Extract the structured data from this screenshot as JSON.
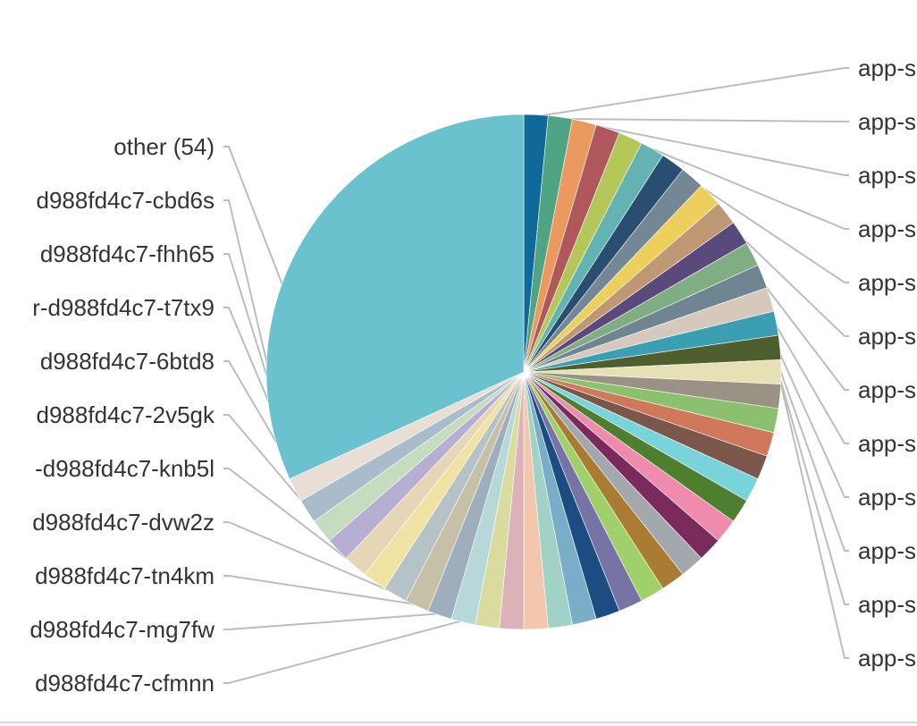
{
  "chart_data": {
    "type": "pie",
    "title": "",
    "left_labels": [
      "other (54)",
      "d988fd4c7-cbd6s",
      "d988fd4c7-fhh65",
      "r-d988fd4c7-t7tx9",
      "d988fd4c7-6btd8",
      "d988fd4c7-2v5gk",
      "-d988fd4c7-knb5l",
      "d988fd4c7-dvw2z",
      "d988fd4c7-tn4km",
      "d988fd4c7-mg7fw",
      "d988fd4c7-cfmnn"
    ],
    "right_labels": [
      "app-s",
      "app-s",
      "app-s",
      "app-s",
      "app-s",
      "app-s",
      "app-s",
      "app-s",
      "app-s",
      "app-s",
      "app-s",
      "app-s"
    ],
    "slices": [
      {
        "value": 2.0,
        "color": "#106A99"
      },
      {
        "value": 2.0,
        "color": "#4FA484"
      },
      {
        "value": 2.0,
        "color": "#EC9960"
      },
      {
        "value": 2.0,
        "color": "#AF575A"
      },
      {
        "value": 2.0,
        "color": "#B6C75A"
      },
      {
        "value": 2.0,
        "color": "#62B3B2"
      },
      {
        "value": 2.0,
        "color": "#294E70"
      },
      {
        "value": 2.0,
        "color": "#738795"
      },
      {
        "value": 2.0,
        "color": "#EDD05B"
      },
      {
        "value": 2.0,
        "color": "#BD9872"
      },
      {
        "value": 2.0,
        "color": "#5A4A7B"
      },
      {
        "value": 2.0,
        "color": "#7EAE81"
      },
      {
        "value": 2.0,
        "color": "#6F8591"
      },
      {
        "value": 2.0,
        "color": "#D6C8BB"
      },
      {
        "value": 2.0,
        "color": "#3A9FB2"
      },
      {
        "value": 2.0,
        "color": "#4F5E2E"
      },
      {
        "value": 2.0,
        "color": "#E5E1B5"
      },
      {
        "value": 2.0,
        "color": "#9A9385"
      },
      {
        "value": 2.0,
        "color": "#8BC16E"
      },
      {
        "value": 2.0,
        "color": "#D0785B"
      },
      {
        "value": 2.0,
        "color": "#7A564B"
      },
      {
        "value": 2.0,
        "color": "#78D4DA"
      },
      {
        "value": 2.0,
        "color": "#4E7F2E"
      },
      {
        "value": 2.0,
        "color": "#EF8CAE"
      },
      {
        "value": 2.0,
        "color": "#7B2A5E"
      },
      {
        "value": 2.0,
        "color": "#A3A8AE"
      },
      {
        "value": 2.0,
        "color": "#A97B33"
      },
      {
        "value": 2.0,
        "color": "#9FD06A"
      },
      {
        "value": 2.0,
        "color": "#7873A5"
      },
      {
        "value": 2.0,
        "color": "#1B4D82"
      },
      {
        "value": 2.0,
        "color": "#7AADC7"
      },
      {
        "value": 2.0,
        "color": "#A2D2C5"
      },
      {
        "value": 2.0,
        "color": "#F2C7AE"
      },
      {
        "value": 2.0,
        "color": "#DCB1B7"
      },
      {
        "value": 2.0,
        "color": "#DADB9F"
      },
      {
        "value": 2.0,
        "color": "#B6D8D8"
      },
      {
        "value": 2.0,
        "color": "#9FAEBD"
      },
      {
        "value": 2.0,
        "color": "#C6C0A6"
      },
      {
        "value": 2.0,
        "color": "#B6C3C6"
      },
      {
        "value": 2.0,
        "color": "#F0E2A2"
      },
      {
        "value": 2.0,
        "color": "#E7D6B6"
      },
      {
        "value": 2.0,
        "color": "#B7AFD1"
      },
      {
        "value": 2.0,
        "color": "#C5DDBE"
      },
      {
        "value": 2.0,
        "color": "#A8BCCB"
      },
      {
        "value": 2.0,
        "color": "#E8DED5"
      },
      {
        "value": 42.0,
        "color": "#6AC2CE"
      }
    ]
  }
}
